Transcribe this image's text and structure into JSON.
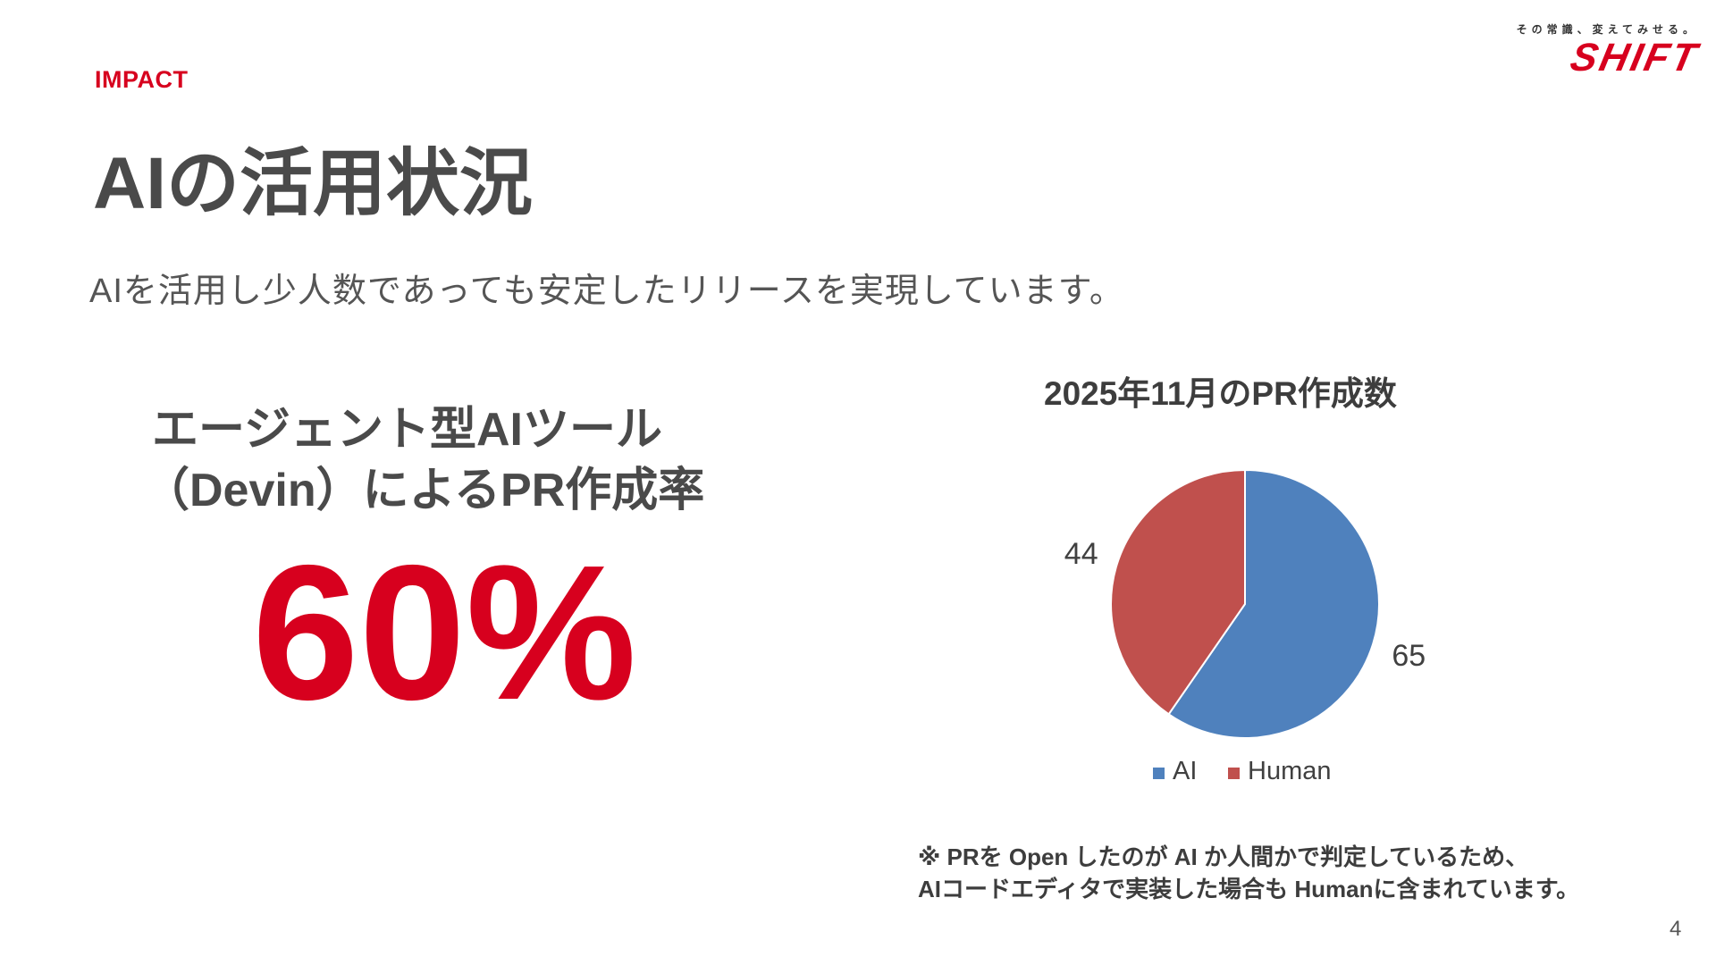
{
  "header": {
    "section_label": "IMPACT",
    "title": "AIの活用状況",
    "subtitle": "AIを活用し少人数であっても安定したリリースを実現しています。"
  },
  "logo": {
    "tagline": "その常識、変えてみせる。",
    "wordmark": "SHIFT",
    "color": "#d7001e"
  },
  "kpi": {
    "label_line1": "エージェント型AIツール",
    "label_line2": "（Devin）によるPR作成率",
    "value": "60%"
  },
  "chart_data": {
    "type": "pie",
    "title": "2025年11月のPR作成数",
    "categories": [
      "AI",
      "Human"
    ],
    "values": [
      65,
      44
    ],
    "colors": [
      "#4f81bd",
      "#c0504d"
    ],
    "legend": "bottom",
    "data_labels": true
  },
  "note": {
    "line1": "※ PRを Open したのが AI か人間かで判定しているため、",
    "line2": "AIコードエディタで実装した場合も Humanに含まれています。"
  },
  "page_number": "4"
}
